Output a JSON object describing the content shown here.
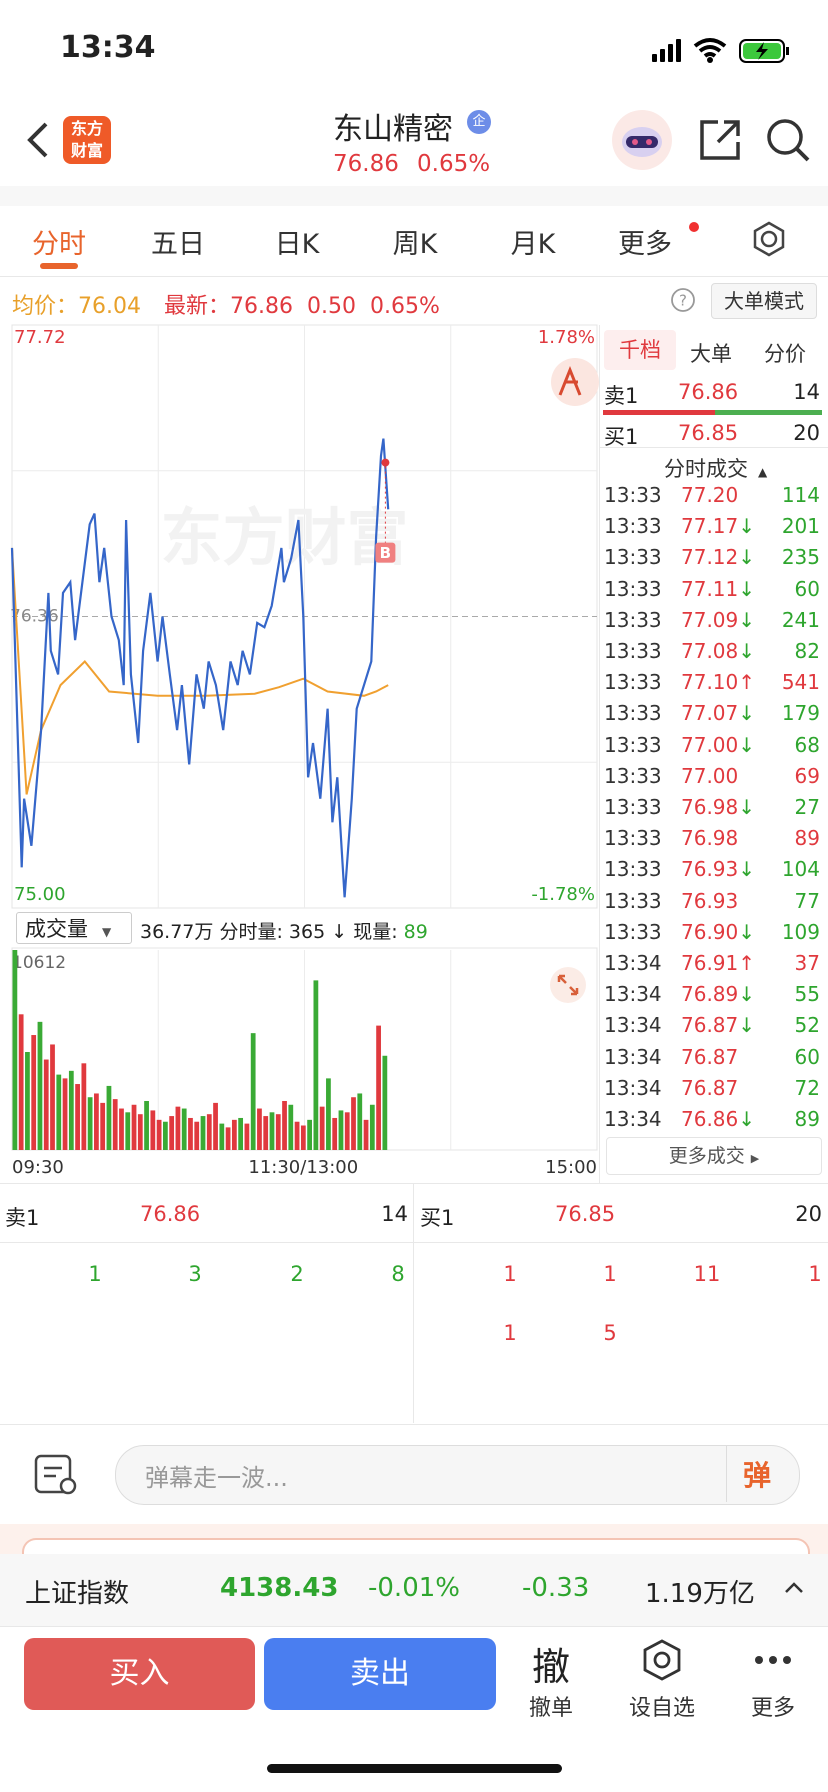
{
  "status": {
    "time": "13:34"
  },
  "header": {
    "logo": [
      "东方",
      "财富"
    ],
    "title": "东山精密",
    "badge": "企",
    "price": "76.86",
    "change_pct": "0.65%"
  },
  "tabs": [
    "分时",
    "五日",
    "日K",
    "周K",
    "月K",
    "更多"
  ],
  "info": {
    "avg_label": "均价：",
    "avg": "76.04",
    "last_label": "最新：",
    "last": "76.86",
    "change": "0.50",
    "change_pct": "0.65%",
    "mode_button": "大单模式"
  },
  "chart": {
    "xlim": [
      0,
      241
    ],
    "xticks": [
      {
        "value": 0,
        "label": "09:30"
      },
      {
        "value": 120,
        "label": "11:30/13:00"
      },
      {
        "value": 241,
        "label": "15:00"
      }
    ],
    "ylim": [
      75.0,
      77.72
    ],
    "yticks": [
      {
        "value": 77.72,
        "label": "77.72"
      },
      {
        "value": 75.0,
        "label": "75.00"
      }
    ],
    "prev_close": {
      "value": 76.36,
      "label": "76.36"
    },
    "pct_labels": [
      "1.78%",
      "-1.78%"
    ],
    "watermark": "东方财富",
    "marker": "B",
    "price": {
      "color": "#3566c9",
      "x": [
        0,
        4,
        5,
        8,
        12,
        15,
        16,
        19,
        21,
        24,
        26,
        29,
        32,
        34,
        36,
        38,
        41,
        44,
        46,
        47,
        49,
        52,
        54,
        57,
        60,
        62,
        65,
        68,
        70,
        73,
        76,
        79,
        81,
        84,
        87,
        90,
        93,
        95,
        98,
        101,
        104,
        107,
        111,
        112,
        115,
        118,
        120,
        122,
        124,
        127,
        130,
        132,
        134,
        137,
        140,
        142,
        145,
        148,
        150,
        152,
        153,
        155
      ],
      "values": [
        76.68,
        75.19,
        75.51,
        75.29,
        75.83,
        76.47,
        76.2,
        76.09,
        76.47,
        76.52,
        76.25,
        76.52,
        76.79,
        76.84,
        76.52,
        76.68,
        76.36,
        76.25,
        76.04,
        76.81,
        76.09,
        75.77,
        76.2,
        76.47,
        76.15,
        76.36,
        76.09,
        75.83,
        76.04,
        75.67,
        76.09,
        75.93,
        76.15,
        76.04,
        75.83,
        76.15,
        76.04,
        76.2,
        76.09,
        76.33,
        76.31,
        76.41,
        76.68,
        76.52,
        76.63,
        76.81,
        76.36,
        75.61,
        75.77,
        75.51,
        75.93,
        75.4,
        75.61,
        75.05,
        75.51,
        75.93,
        76.04,
        76.15,
        76.73,
        77.11,
        77.19,
        76.86
      ]
    },
    "avg": {
      "color": "#f0a030",
      "x": [
        0,
        6,
        12,
        20,
        30,
        40,
        60,
        80,
        100,
        110,
        120,
        130,
        145,
        150,
        155
      ],
      "values": [
        76.68,
        75.53,
        75.83,
        76.04,
        76.15,
        76.01,
        75.99,
        75.99,
        76.0,
        76.03,
        76.07,
        76.01,
        75.99,
        76.01,
        76.04
      ]
    }
  },
  "volume": {
    "menu": "成交量",
    "total": "36.77万",
    "minute_label": "分时量:",
    "minute_vol": "365",
    "arrow": "↓",
    "now_label": "现量:",
    "now": "89",
    "ylim": [
      0,
      10612
    ],
    "max_label": "10612",
    "span": 155,
    "series": [
      {
        "color": "#e0393e",
        "values": [
          null,
          7200,
          null,
          6100,
          null,
          4800,
          5600,
          null,
          3800,
          null,
          3500,
          4600,
          null,
          3000,
          2500,
          null,
          2700,
          2200,
          null,
          2400,
          1900,
          null,
          2100,
          1600,
          null,
          1800,
          2300,
          null,
          1700,
          1500,
          null,
          1900,
          2500,
          null,
          1200,
          1600,
          null,
          1400,
          null,
          2200,
          1800,
          null,
          1900,
          2600,
          null,
          1500,
          1300,
          null,
          null,
          2300,
          null,
          1700,
          null,
          2000,
          2800,
          null,
          1600,
          null,
          6600,
          null
        ]
      },
      {
        "color": "#3aaa35",
        "values": [
          10612,
          null,
          5200,
          null,
          6800,
          null,
          null,
          4000,
          null,
          4200,
          null,
          null,
          2800,
          null,
          null,
          3400,
          null,
          null,
          2000,
          null,
          null,
          2600,
          null,
          null,
          1500,
          null,
          null,
          2200,
          null,
          null,
          1800,
          null,
          null,
          1400,
          null,
          null,
          1700,
          null,
          6200,
          null,
          null,
          2000,
          null,
          null,
          2400,
          null,
          null,
          1600,
          9000,
          null,
          3800,
          null,
          2100,
          null,
          null,
          3000,
          null,
          2400,
          null,
          5000
        ]
      }
    ]
  },
  "order_panel": {
    "tabs": [
      "千档",
      "大单",
      "分价"
    ],
    "ask": {
      "label": "卖1",
      "price": "76.86",
      "qty": "14"
    },
    "bid": {
      "label": "买1",
      "price": "76.85",
      "qty": "20"
    },
    "trades_title": "分时成交",
    "more": "更多成交",
    "trades": [
      {
        "time": "13:33",
        "price": "77.20",
        "vol": "114",
        "color": "green"
      },
      {
        "time": "13:33",
        "price": "77.17",
        "arrow": "↓",
        "vol": "201",
        "color": "green"
      },
      {
        "time": "13:33",
        "price": "77.12",
        "arrow": "↓",
        "vol": "235",
        "color": "green"
      },
      {
        "time": "13:33",
        "price": "77.11",
        "arrow": "↓",
        "vol": "60",
        "color": "green"
      },
      {
        "time": "13:33",
        "price": "77.09",
        "arrow": "↓",
        "vol": "241",
        "color": "green"
      },
      {
        "time": "13:33",
        "price": "77.08",
        "arrow": "↓",
        "vol": "82",
        "color": "green"
      },
      {
        "time": "13:33",
        "price": "77.10",
        "arrow": "↑",
        "vol": "541",
        "color": "red"
      },
      {
        "time": "13:33",
        "price": "77.07",
        "arrow": "↓",
        "vol": "179",
        "color": "green"
      },
      {
        "time": "13:33",
        "price": "77.00",
        "arrow": "↓",
        "vol": "68",
        "color": "green"
      },
      {
        "time": "13:33",
        "price": "77.00",
        "vol": "69",
        "color": "red"
      },
      {
        "time": "13:33",
        "price": "76.98",
        "arrow": "↓",
        "vol": "27",
        "color": "green"
      },
      {
        "time": "13:33",
        "price": "76.98",
        "vol": "89",
        "color": "red"
      },
      {
        "time": "13:33",
        "price": "76.93",
        "arrow": "↓",
        "vol": "104",
        "color": "green"
      },
      {
        "time": "13:33",
        "price": "76.93",
        "vol": "77",
        "color": "green"
      },
      {
        "time": "13:33",
        "price": "76.90",
        "arrow": "↓",
        "vol": "109",
        "color": "green"
      },
      {
        "time": "13:34",
        "price": "76.91",
        "arrow": "↑",
        "vol": "37",
        "color": "red"
      },
      {
        "time": "13:34",
        "price": "76.89",
        "arrow": "↓",
        "vol": "55",
        "color": "green"
      },
      {
        "time": "13:34",
        "price": "76.87",
        "arrow": "↓",
        "vol": "52",
        "color": "green"
      },
      {
        "time": "13:34",
        "price": "76.87",
        "vol": "60",
        "color": "green"
      },
      {
        "time": "13:34",
        "price": "76.87",
        "vol": "72",
        "color": "green"
      },
      {
        "time": "13:34",
        "price": "76.86",
        "arrow": "↓",
        "vol": "89",
        "color": "green"
      }
    ]
  },
  "depth": {
    "ask": {
      "label": "卖1",
      "price": "76.86",
      "qty": "14"
    },
    "bid": {
      "label": "买1",
      "price": "76.85",
      "qty": "20"
    },
    "ask_queue": [
      "1",
      "3",
      "2",
      "8"
    ],
    "bid_queue": [
      "1",
      "1",
      "11",
      "1",
      "1",
      "5"
    ]
  },
  "comment": {
    "placeholder": "弹幕走一波...",
    "button": "弹"
  },
  "index_bar": {
    "name": "上证指数",
    "value": "4138.43",
    "change_pct": "-0.01%",
    "change": "-0.33",
    "turnover": "1.19万亿"
  },
  "actions": {
    "buy": "买入",
    "sell": "卖出",
    "cancel_icon": "撤",
    "cancel": "撤单",
    "watch": "设自选",
    "more": "更多"
  }
}
